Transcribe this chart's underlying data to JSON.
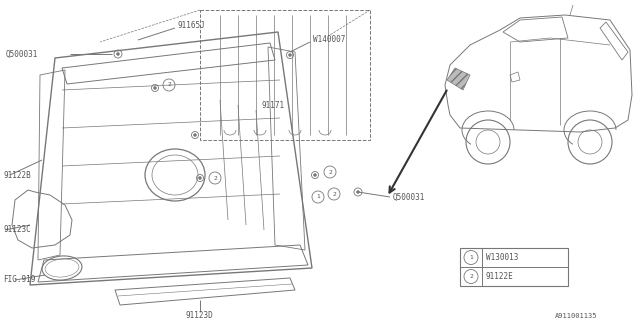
{
  "bg_color": "#ffffff",
  "lc": "#777777",
  "tc": "#555555",
  "lw": 0.7,
  "fs": 5.5,
  "legend_items": [
    {
      "num": "1",
      "text": "W130013"
    },
    {
      "num": "2",
      "text": "91122E"
    }
  ],
  "diagram_id": "A911001135"
}
